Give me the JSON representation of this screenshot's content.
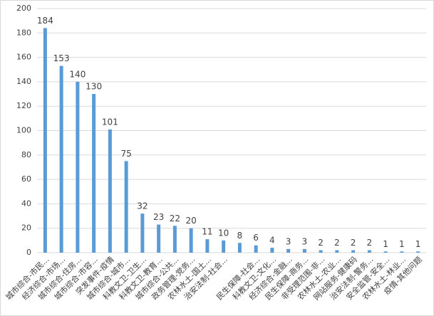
{
  "chart_data": {
    "type": "bar",
    "categories": [
      "城市综合-市民...",
      "经济综合-市场...",
      "城市综合-住房...",
      "城市综合-市容...",
      "突发事件-疫情",
      "城市综合-城市...",
      "科教文卫-卫生...",
      "科教文卫-教育...",
      "城市综合-公共...",
      "政务管理-党务...",
      "农林水土-国土...",
      "治安法制-社会...",
      null,
      "民生保障-社会...",
      "科教文卫-文化...",
      "经济综合-金融...",
      "民生保障-商务...",
      "非受理范围-非...",
      "农林水土-农业...",
      "网站服务-健康码",
      "治安法制-警务...",
      "安全监管-安全...",
      "农林水土-林业...",
      "疫情-其他问题"
    ],
    "values": [
      184,
      153,
      140,
      130,
      101,
      75,
      32,
      23,
      22,
      20,
      11,
      10,
      8,
      6,
      4,
      3,
      3,
      2,
      2,
      2,
      2,
      1,
      1,
      1
    ],
    "color": "#5b9bd5",
    "ylim": [
      0,
      200
    ],
    "yticks": [
      0,
      20,
      40,
      60,
      80,
      100,
      120,
      140,
      160,
      180,
      200
    ],
    "grid": true
  }
}
